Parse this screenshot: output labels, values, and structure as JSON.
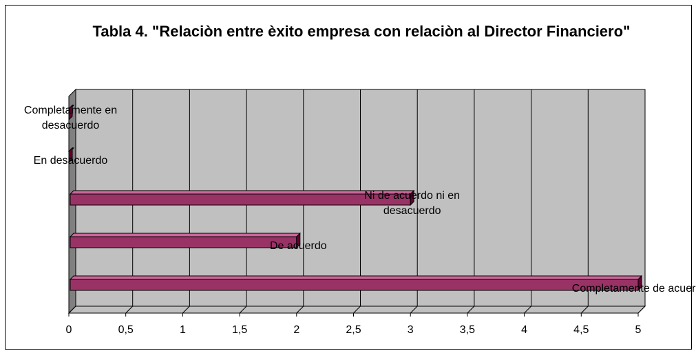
{
  "chart_data": {
    "type": "bar3d",
    "title": "Tabla 4. \"Relaciòn entre èxito empresa con relaciòn al Director Financiero\"",
    "categories": [
      "Completamente de acuerdo",
      "De acuerdo",
      "Ni de acuerdo ni en desacuerdo",
      "En desacuerdo",
      "Completamente en desacuerdo"
    ],
    "values": [
      5,
      2,
      3,
      0,
      0
    ],
    "color": "#993366",
    "xlim": [
      0,
      5
    ],
    "xticks": [
      0,
      {
        "value": 0.5,
        "label": "0,5"
      },
      1,
      {
        "value": 1.5,
        "label": "1,5"
      },
      2,
      {
        "value": 2.5,
        "label": "2,5"
      },
      3,
      {
        "value": 3.5,
        "label": "3,5"
      },
      4,
      {
        "value": 4.5,
        "label": "4,5"
      },
      5
    ],
    "grid": true
  }
}
